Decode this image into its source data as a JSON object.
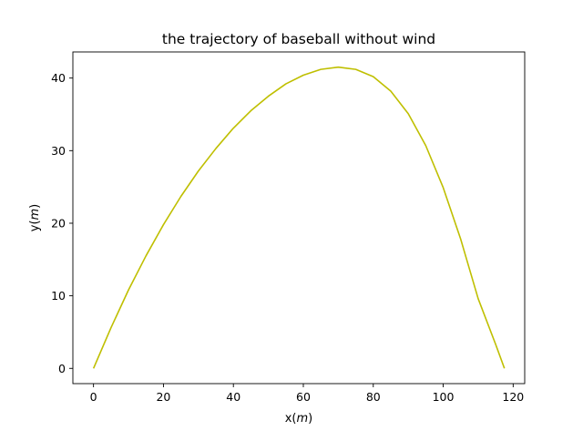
{
  "chart_data": {
    "type": "line",
    "title": "the trajectory of baseball without wind",
    "xlabel_prefix": "x(",
    "xlabel_unit": "m",
    "xlabel_suffix": ")",
    "ylabel_prefix": "y(",
    "ylabel_unit": "m",
    "ylabel_suffix": ")",
    "xlim": [
      -5.9,
      123.3
    ],
    "ylim": [
      -2.1,
      43.6
    ],
    "xticks": [
      0,
      20,
      40,
      60,
      80,
      100,
      120
    ],
    "yticks": [
      0,
      10,
      20,
      30,
      40
    ],
    "grid": false,
    "series": [
      {
        "color": "#bfbf00",
        "x": [
          0,
          5,
          10,
          15,
          20,
          25,
          30,
          35,
          40,
          45,
          50,
          55,
          60,
          65,
          70,
          75,
          80,
          85,
          90,
          95,
          100,
          105,
          110,
          115,
          117.5
        ],
        "y": [
          0,
          5.6,
          10.8,
          15.5,
          19.8,
          23.7,
          27.2,
          30.3,
          33.1,
          35.5,
          37.5,
          39.2,
          40.4,
          41.2,
          41.5,
          41.2,
          40.2,
          38.2,
          35.1,
          30.7,
          24.9,
          17.8,
          9.6,
          3.3,
          0
        ]
      }
    ]
  }
}
